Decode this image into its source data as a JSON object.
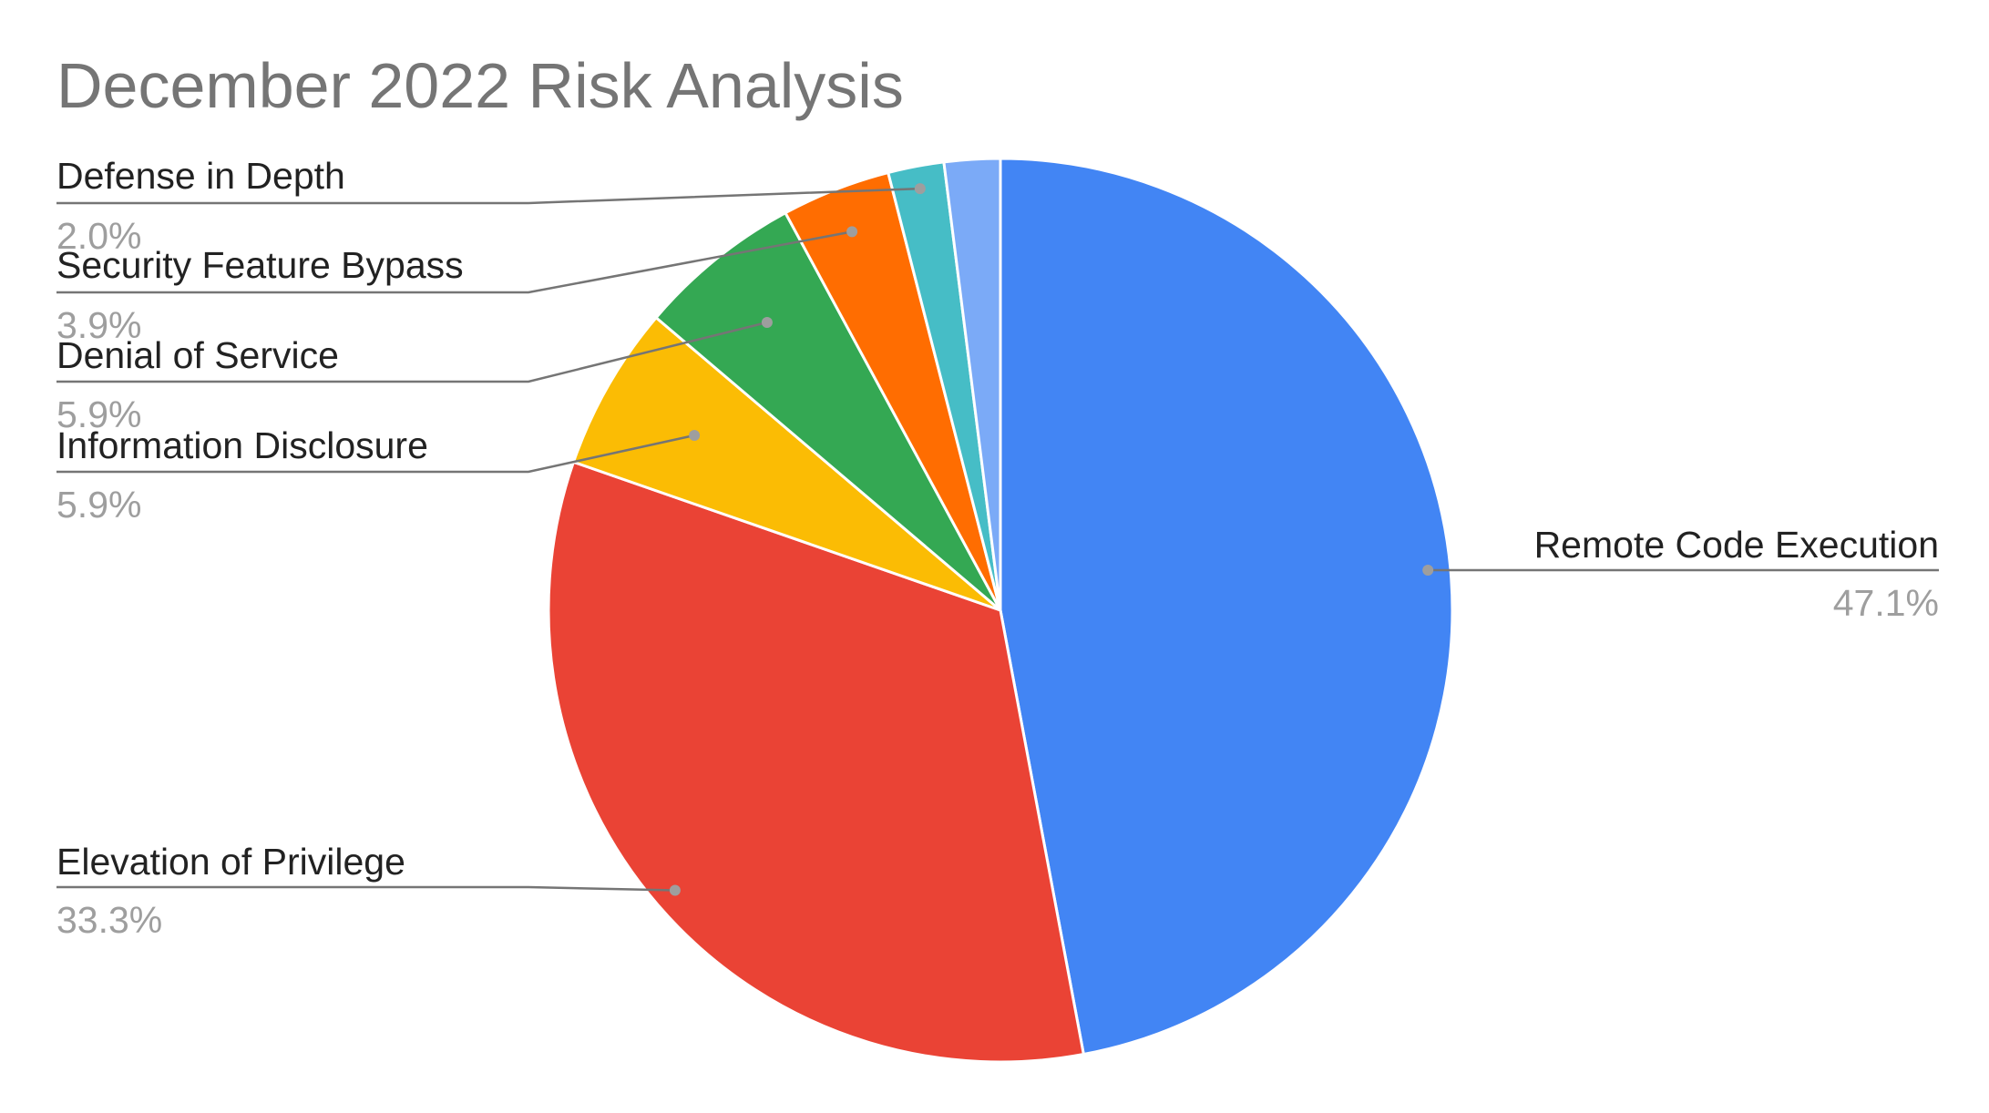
{
  "chart_data": {
    "type": "pie",
    "title": "December 2022 Risk Analysis",
    "slices": [
      {
        "name": "Remote Code Execution",
        "value": 47.1,
        "label": "47.1%",
        "color": "#4285f4"
      },
      {
        "name": "Elevation of Privilege",
        "value": 33.3,
        "label": "33.3%",
        "color": "#ea4335"
      },
      {
        "name": "Information Disclosure",
        "value": 5.9,
        "label": "5.9%",
        "color": "#fbbc04"
      },
      {
        "name": "Denial of Service",
        "value": 5.9,
        "label": "5.9%",
        "color": "#34a853"
      },
      {
        "name": "Security Feature Bypass",
        "value": 3.9,
        "label": "3.9%",
        "color": "#ff6d01"
      },
      {
        "name": "Defense in Depth",
        "value": 2.0,
        "label": "2.0%",
        "color": "#46bdc6"
      },
      {
        "name": "",
        "value": 2.0,
        "label": "",
        "color": "#7baaf7"
      }
    ],
    "legend": "labels"
  }
}
